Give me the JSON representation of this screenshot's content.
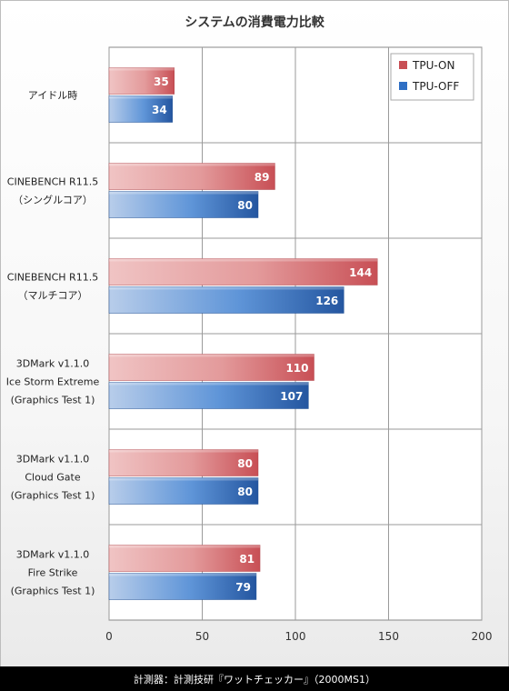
{
  "chart_data": {
    "type": "bar",
    "orientation": "horizontal",
    "title": "システムの消費電力比較",
    "categories": [
      [
        "アイドル時"
      ],
      [
        "CINEBENCH R11.5",
        "（シングルコア）"
      ],
      [
        "CINEBENCH R11.5",
        "（マルチコア）"
      ],
      [
        "3DMark v1.1.0",
        "Ice Storm Extreme",
        "(Graphics Test 1)"
      ],
      [
        "3DMark v1.1.0",
        "Cloud Gate",
        "(Graphics Test 1)"
      ],
      [
        "3DMark v1.1.0",
        "Fire Strike",
        "(Graphics Test 1)"
      ]
    ],
    "series": [
      {
        "name": "TPU-ON",
        "values": [
          35,
          89,
          144,
          110,
          80,
          81
        ],
        "color": "#c84f55"
      },
      {
        "name": "TPU-OFF",
        "values": [
          34,
          80,
          126,
          107,
          80,
          79
        ],
        "color": "#2f6fc4"
      }
    ],
    "xlim": [
      0,
      200
    ],
    "xticks": [
      0,
      50,
      100,
      150,
      200
    ],
    "grid": true,
    "legend_position": "top-right"
  },
  "footer": {
    "text": "計測器：計測技研『ワットチェッカー』（2000MS1）"
  }
}
